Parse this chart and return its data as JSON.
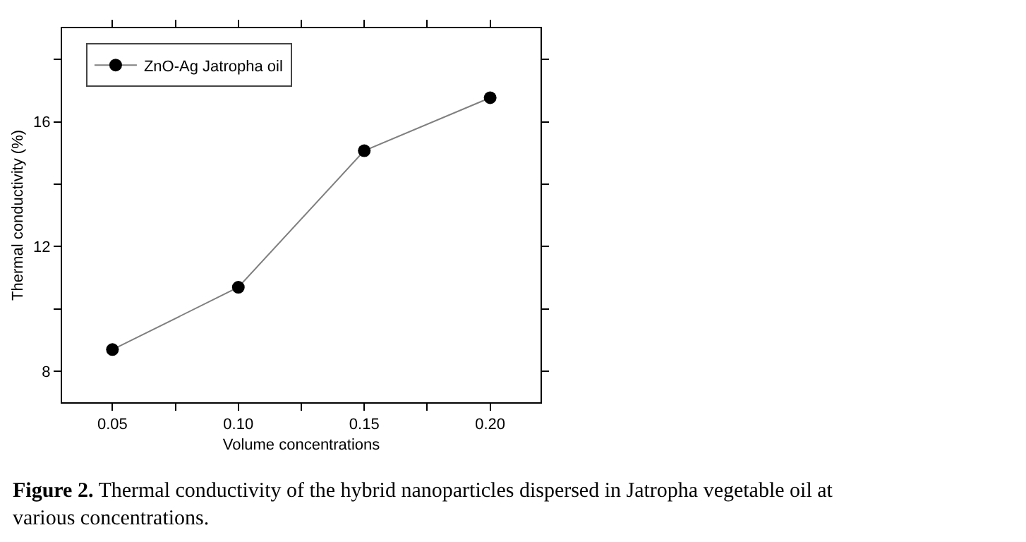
{
  "chart_data": {
    "type": "line",
    "xlabel": "Volume concentrations",
    "ylabel": "Thermal conductivity (%)",
    "x": [
      0.05,
      0.1,
      0.15,
      0.2
    ],
    "series": [
      {
        "name": "ZnO-Ag Jatropha oil",
        "color": "#000000",
        "values": [
          8.69,
          10.69,
          15.07,
          16.77
        ]
      }
    ],
    "xlim": [
      0.03,
      0.22
    ],
    "ylim": [
      7,
      19
    ],
    "xticks": [
      {
        "value": 0.05,
        "label": "0.05"
      },
      {
        "value": 0.075,
        "label": null
      },
      {
        "value": 0.1,
        "label": "0.10"
      },
      {
        "value": 0.125,
        "label": null
      },
      {
        "value": 0.15,
        "label": "0.15"
      },
      {
        "value": 0.175,
        "label": null
      },
      {
        "value": 0.2,
        "label": "0.20"
      }
    ],
    "yticks": [
      8,
      {
        "value": 10,
        "label": null
      },
      12,
      {
        "value": 14,
        "label": null
      },
      16,
      {
        "value": 18,
        "label": null
      }
    ],
    "marker": "circle",
    "line_style": "solid",
    "legend": "top left",
    "annotations": [
      "Figure 2. Thermal conductivity of the hybrid nanoparticles dispersed in Jatropha vegetable oil at various concentrations."
    ]
  }
}
